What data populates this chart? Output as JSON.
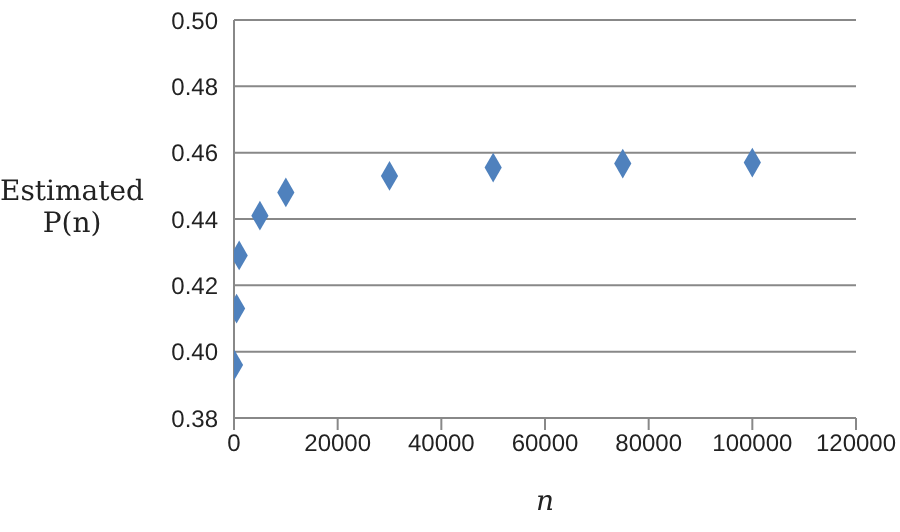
{
  "chart_data": {
    "type": "scatter",
    "xlabel": "n",
    "ylabel": "Estimated P(n)",
    "x": [
      100,
      500,
      1000,
      5000,
      10000,
      30000,
      50000,
      75000,
      100000
    ],
    "series": [
      {
        "color": "#4f81bd",
        "values": [
          0.396,
          0.413,
          0.429,
          0.441,
          0.448,
          0.453,
          0.4555,
          0.4567,
          0.457
        ]
      }
    ],
    "xlim": [
      0,
      120000
    ],
    "xticks": [
      0,
      20000,
      40000,
      60000,
      80000,
      100000,
      120000
    ],
    "ylim": [
      0.38,
      0.5
    ],
    "yticks": [
      {
        "value": 0.38,
        "label": "0.38"
      },
      {
        "value": 0.4,
        "label": "0.40"
      },
      {
        "value": 0.42,
        "label": "0.42"
      },
      {
        "value": 0.44,
        "label": "0.44"
      },
      {
        "value": 0.46,
        "label": "0.46"
      },
      {
        "value": 0.48,
        "label": "0.48"
      },
      {
        "value": 0.5,
        "label": "0.50"
      }
    ],
    "grid": "y",
    "marker": "diamond",
    "legend": false
  }
}
